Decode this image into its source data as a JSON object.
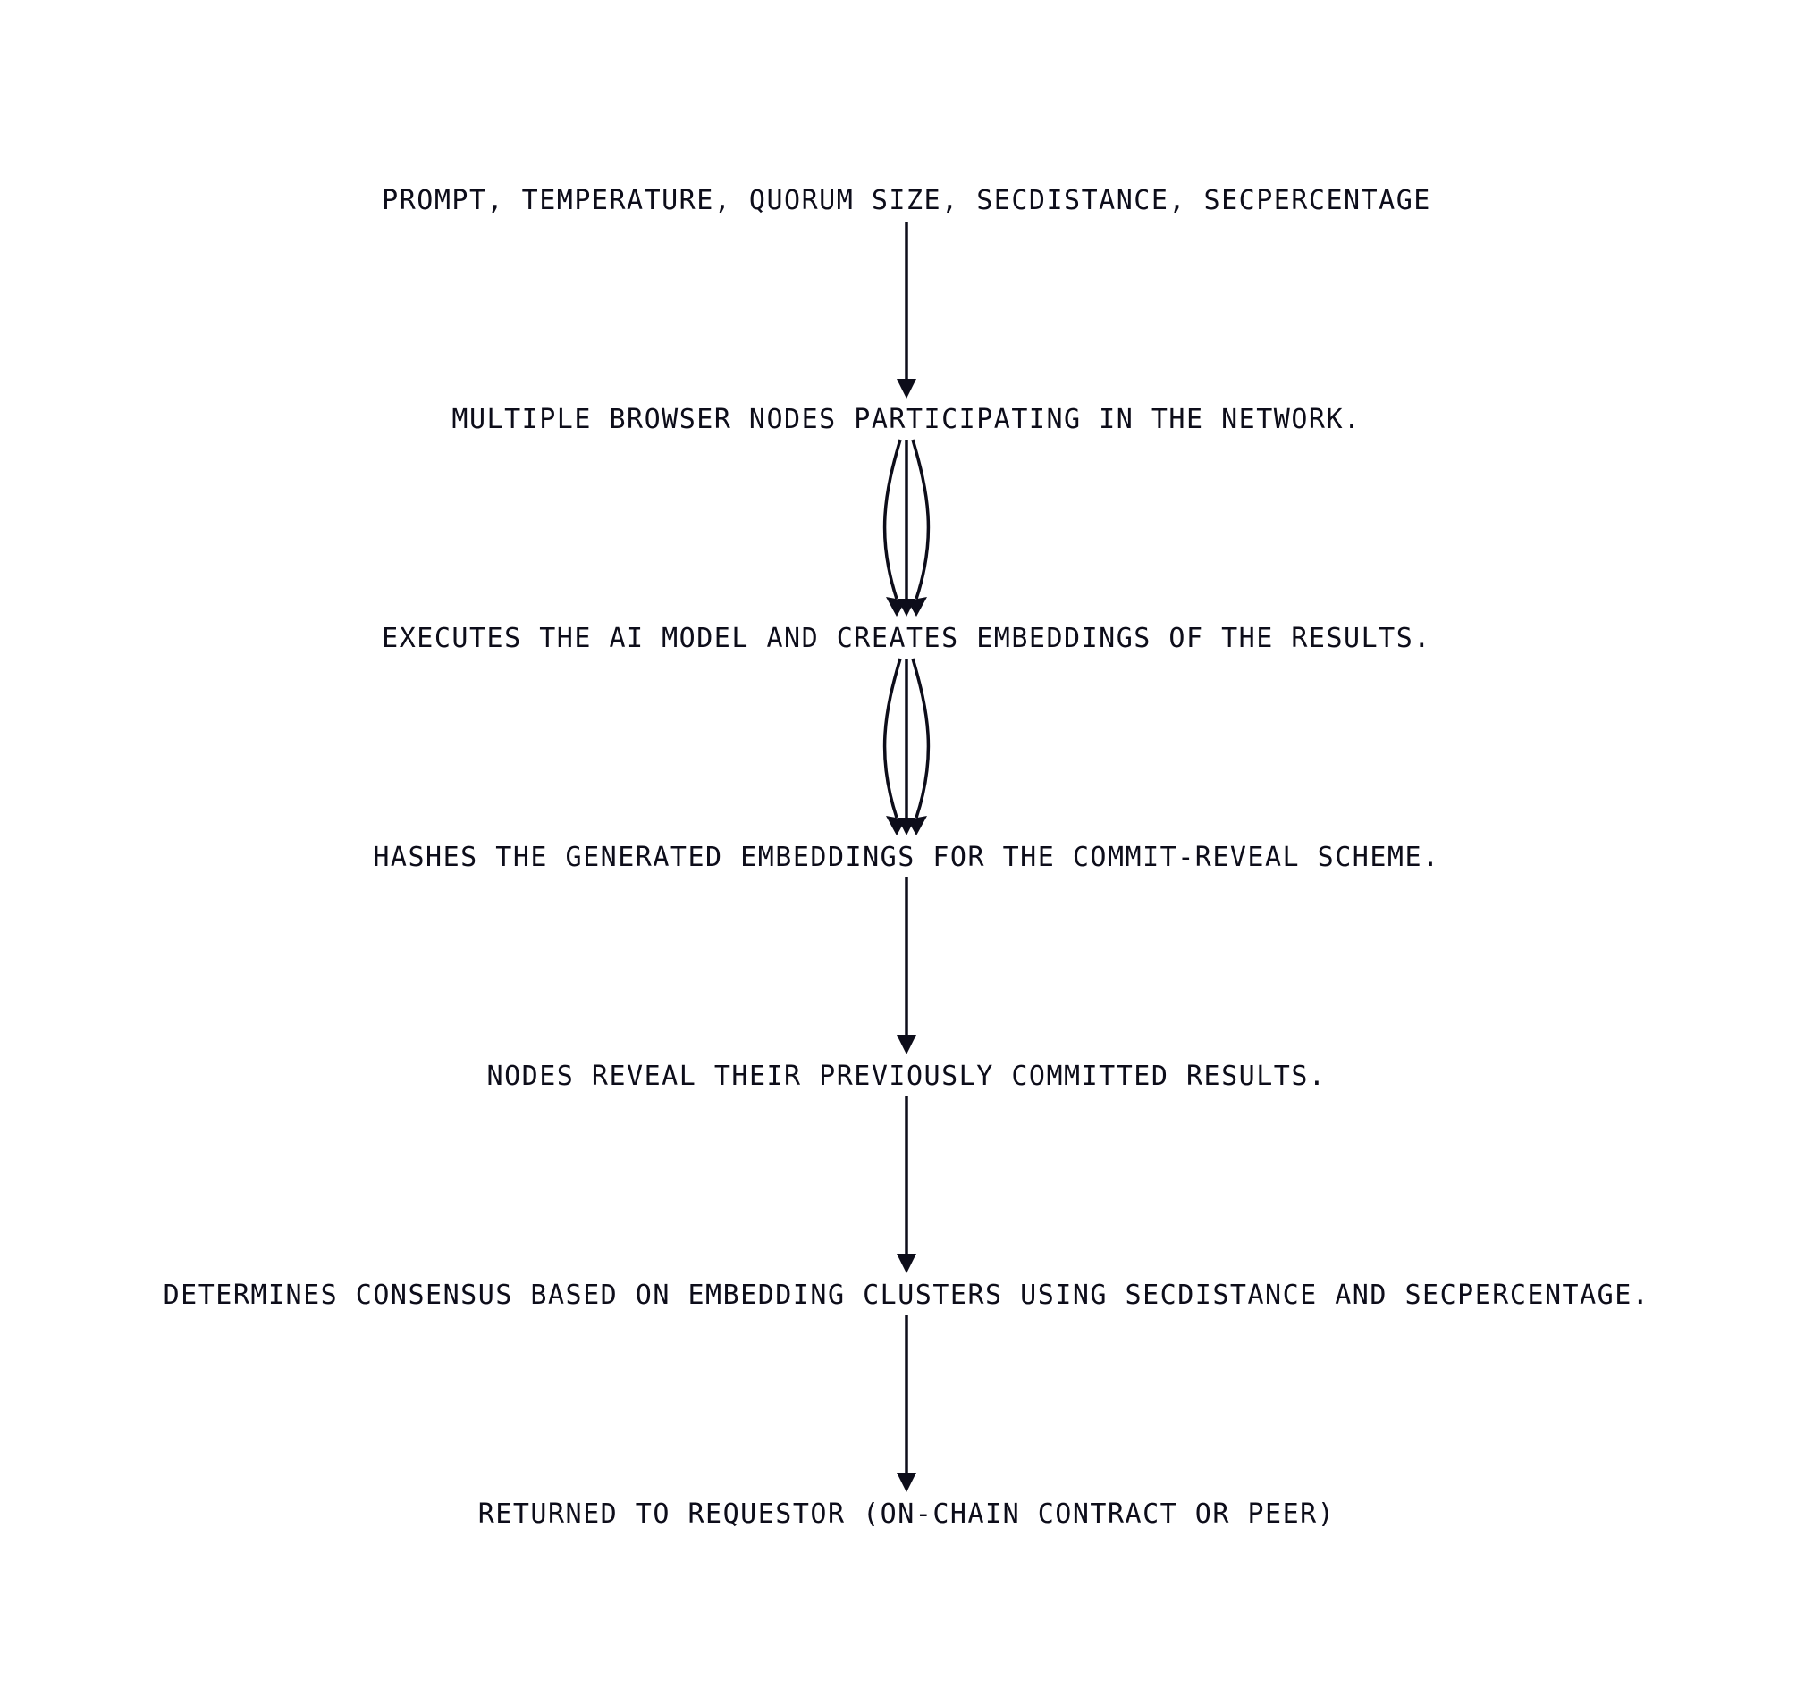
{
  "diagram": {
    "nodes": [
      {
        "id": "input",
        "label": "PROMPT, TEMPERATURE, QUORUM SIZE, SECDISTANCE, SECPERCENTAGE"
      },
      {
        "id": "nodes",
        "label": "MULTIPLE BROWSER NODES PARTICIPATING IN THE NETWORK."
      },
      {
        "id": "execute",
        "label": "EXECUTES THE AI MODEL AND CREATES EMBEDDINGS OF THE RESULTS."
      },
      {
        "id": "hash",
        "label": "HASHES THE GENERATED EMBEDDINGS FOR THE COMMIT-REVEAL SCHEME."
      },
      {
        "id": "reveal",
        "label": "NODES REVEAL THEIR PREVIOUSLY COMMITTED RESULTS."
      },
      {
        "id": "consensus",
        "label": "DETERMINES CONSENSUS BASED ON EMBEDDING CLUSTERS USING SECDISTANCE AND SECPERCENTAGE."
      },
      {
        "id": "return",
        "label": "RETURNED TO REQUESTOR (ON-CHAIN CONTRACT OR PEER)"
      }
    ],
    "edges": [
      {
        "from": "input",
        "to": "nodes",
        "count": 1
      },
      {
        "from": "nodes",
        "to": "execute",
        "count": 3
      },
      {
        "from": "execute",
        "to": "hash",
        "count": 3
      },
      {
        "from": "hash",
        "to": "reveal",
        "count": 1
      },
      {
        "from": "reveal",
        "to": "consensus",
        "count": 1
      },
      {
        "from": "consensus",
        "to": "return",
        "count": 1
      }
    ],
    "colors": {
      "ink": "#0d0d1a",
      "background": "#ffffff"
    }
  }
}
